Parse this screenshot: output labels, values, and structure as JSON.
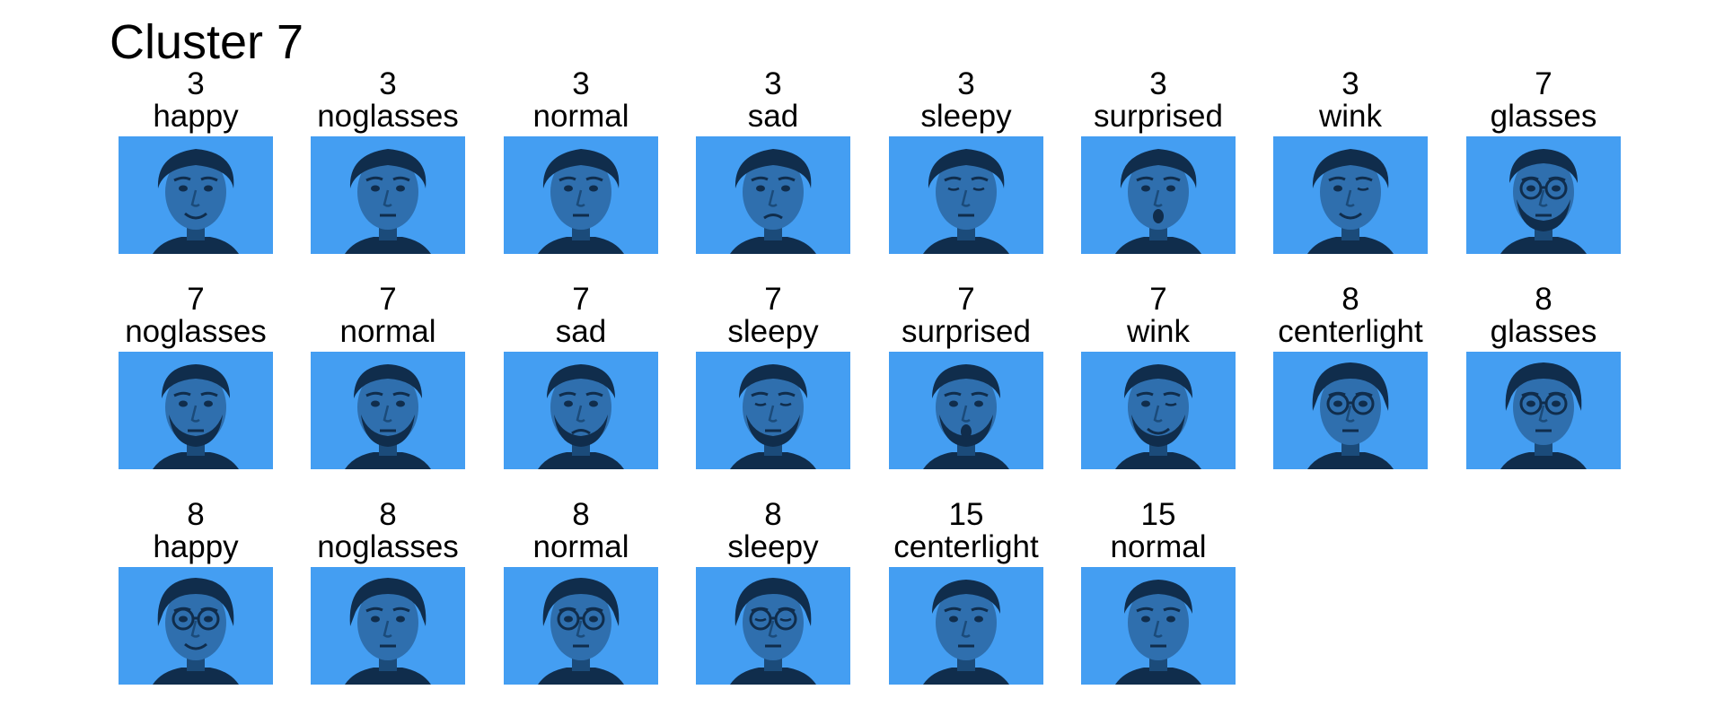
{
  "title": "Cluster 7",
  "colors": {
    "background": "#449ef2",
    "face": "#2f6fae",
    "hair": "#102d4c",
    "shadow": "#1b4b7a"
  },
  "images": [
    {
      "subject": "3",
      "condition": "happy",
      "glasses": false,
      "beard": false,
      "hair": "wavy",
      "mouth": "smile"
    },
    {
      "subject": "3",
      "condition": "noglasses",
      "glasses": false,
      "beard": false,
      "hair": "wavy",
      "mouth": "neutral"
    },
    {
      "subject": "3",
      "condition": "normal",
      "glasses": false,
      "beard": false,
      "hair": "wavy",
      "mouth": "neutral"
    },
    {
      "subject": "3",
      "condition": "sad",
      "glasses": false,
      "beard": false,
      "hair": "wavy",
      "mouth": "sad"
    },
    {
      "subject": "3",
      "condition": "sleepy",
      "glasses": false,
      "beard": false,
      "hair": "wavy",
      "mouth": "neutral",
      "eyes": "closed"
    },
    {
      "subject": "3",
      "condition": "surprised",
      "glasses": false,
      "beard": false,
      "hair": "wavy",
      "mouth": "open"
    },
    {
      "subject": "3",
      "condition": "wink",
      "glasses": false,
      "beard": false,
      "hair": "wavy",
      "mouth": "smile",
      "eyes": "wink"
    },
    {
      "subject": "7",
      "condition": "glasses",
      "glasses": true,
      "beard": true,
      "hair": "short",
      "mouth": "neutral"
    },
    {
      "subject": "7",
      "condition": "noglasses",
      "glasses": false,
      "beard": true,
      "hair": "short",
      "mouth": "neutral"
    },
    {
      "subject": "7",
      "condition": "normal",
      "glasses": false,
      "beard": true,
      "hair": "short",
      "mouth": "neutral"
    },
    {
      "subject": "7",
      "condition": "sad",
      "glasses": false,
      "beard": true,
      "hair": "short",
      "mouth": "sad"
    },
    {
      "subject": "7",
      "condition": "sleepy",
      "glasses": false,
      "beard": true,
      "hair": "short",
      "mouth": "neutral",
      "eyes": "closed"
    },
    {
      "subject": "7",
      "condition": "surprised",
      "glasses": false,
      "beard": true,
      "hair": "short",
      "mouth": "open"
    },
    {
      "subject": "7",
      "condition": "wink",
      "glasses": false,
      "beard": true,
      "hair": "short",
      "mouth": "smile",
      "eyes": "wink"
    },
    {
      "subject": "8",
      "condition": "centerlight",
      "glasses": true,
      "beard": false,
      "hair": "bowl",
      "mouth": "neutral"
    },
    {
      "subject": "8",
      "condition": "glasses",
      "glasses": true,
      "beard": false,
      "hair": "bowl",
      "mouth": "neutral"
    },
    {
      "subject": "8",
      "condition": "happy",
      "glasses": true,
      "beard": false,
      "hair": "bowl",
      "mouth": "smile"
    },
    {
      "subject": "8",
      "condition": "noglasses",
      "glasses": false,
      "beard": false,
      "hair": "bowl",
      "mouth": "neutral"
    },
    {
      "subject": "8",
      "condition": "normal",
      "glasses": true,
      "beard": false,
      "hair": "bowl",
      "mouth": "neutral"
    },
    {
      "subject": "8",
      "condition": "sleepy",
      "glasses": true,
      "beard": false,
      "hair": "bowl",
      "mouth": "neutral",
      "eyes": "closed"
    },
    {
      "subject": "15",
      "condition": "centerlight",
      "glasses": false,
      "beard": false,
      "hair": "short",
      "mouth": "neutral"
    },
    {
      "subject": "15",
      "condition": "normal",
      "glasses": false,
      "beard": false,
      "hair": "short",
      "mouth": "neutral"
    }
  ]
}
